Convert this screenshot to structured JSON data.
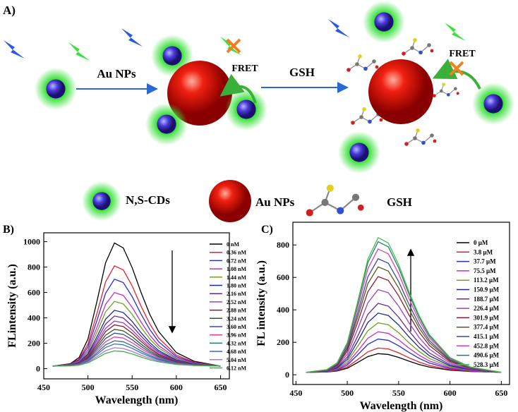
{
  "schematic": {
    "panel": "A)",
    "step1": "Au NPs",
    "step2": "GSH",
    "fret": [
      "FRET",
      "FRET"
    ],
    "legend": [
      "N,S-CDs",
      "Au NPs",
      "GSH"
    ]
  },
  "chart_data": [
    {
      "type": "line",
      "panel": "B)",
      "x_label": "Wavelength (nm)",
      "y_label": "FLintensity (a.u.)",
      "x": [
        460,
        480,
        490,
        500,
        510,
        520,
        530,
        540,
        550,
        560,
        570,
        580,
        600,
        620,
        650
      ],
      "xlim": [
        450,
        660
      ],
      "xticks": [
        450,
        500,
        550,
        600,
        650
      ],
      "ylim": [
        -80,
        1070
      ],
      "yticks": [
        0,
        200,
        400,
        600,
        800,
        1000
      ],
      "series": [
        {
          "name": "0 nM",
          "color": "#000000",
          "values": [
            20,
            39,
            88,
            233,
            524,
            835,
            990,
            951,
            796,
            602,
            427,
            292,
            127,
            59,
            20
          ]
        },
        {
          "name": "0.36 nM",
          "color": "#e8202a",
          "values": [
            20,
            36,
            75,
            194,
            431,
            684,
            810,
            778,
            652,
            494,
            352,
            241,
            107,
            52,
            20
          ]
        },
        {
          "name": "0.72 nM",
          "color": "#2a2ae0",
          "values": [
            20,
            34,
            68,
            171,
            376,
            595,
            705,
            678,
            568,
            431,
            308,
            212,
            95,
            47,
            20
          ]
        },
        {
          "name": "1.08 nM",
          "color": "#c030c8",
          "values": [
            20,
            32,
            61,
            148,
            322,
            507,
            600,
            577,
            484,
            368,
            264,
            182,
            84,
            43,
            20
          ]
        },
        {
          "name": "1.44 nM",
          "color": "#70a020",
          "values": [
            20,
            30,
            56,
            132,
            285,
            448,
            530,
            510,
            428,
            326,
            234,
            163,
            76,
            40,
            20
          ]
        },
        {
          "name": "1.80 nM",
          "color": "#1a2a90",
          "values": [
            20,
            29,
            51,
            117,
            249,
            390,
            460,
            442,
            372,
            284,
            205,
            143,
            68,
            38,
            20
          ]
        },
        {
          "name": "2.16 nM",
          "color": "#6a2a9a",
          "values": [
            20,
            28,
            48,
            107,
            225,
            352,
            415,
            399,
            336,
            257,
            186,
            131,
            63,
            36,
            20
          ]
        },
        {
          "name": "2.52 nM",
          "color": "#a040c0",
          "values": [
            20,
            27,
            45,
            98,
            205,
            318,
            375,
            361,
            304,
            233,
            169,
            119,
            59,
            34,
            20
          ]
        },
        {
          "name": "2.88 nM",
          "color": "#8a1a3a",
          "values": [
            20,
            27,
            43,
            92,
            189,
            293,
            345,
            332,
            280,
            215,
            157,
            111,
            56,
            33,
            20
          ]
        },
        {
          "name": "3.24 nM",
          "color": "#3a5a1a",
          "values": [
            20,
            26,
            40,
            84,
            171,
            264,
            310,
            298,
            252,
            194,
            142,
            101,
            52,
            32,
            20
          ]
        },
        {
          "name": "3.60 nM",
          "color": "#3a4aa0",
          "values": [
            20,
            25,
            38,
            77,
            155,
            238,
            280,
            270,
            228,
            176,
            129,
            93,
            49,
            30,
            20
          ]
        },
        {
          "name": "3.96 nM",
          "color": "#e040a0",
          "values": [
            20,
            25,
            36,
            71,
            140,
            213,
            250,
            241,
            204,
            158,
            117,
            84,
            45,
            29,
            20
          ]
        },
        {
          "name": "4.32 nM",
          "color": "#207a7a",
          "values": [
            20,
            24,
            34,
            64,
            124,
            188,
            220,
            212,
            180,
            140,
            104,
            76,
            42,
            28,
            20
          ]
        },
        {
          "name": "4.68 nM",
          "color": "#3a6ad0",
          "values": [
            20,
            24,
            32,
            59,
            111,
            167,
            195,
            188,
            160,
            125,
            94,
            69,
            39,
            27,
            20
          ]
        },
        {
          "name": "5.04 nM",
          "color": "#b070e0",
          "values": [
            20,
            23,
            30,
            52,
            95,
            142,
            165,
            159,
            136,
            107,
            81,
            61,
            36,
            26,
            20
          ]
        },
        {
          "name": "6.12 nM",
          "color": "#40b040",
          "values": [
            20,
            22,
            28,
            46,
            82,
            121,
            140,
            135,
            116,
            92,
            70,
            54,
            33,
            25,
            20
          ]
        }
      ]
    },
    {
      "type": "line",
      "panel": "C)",
      "x_label": "Wavelength (nm)",
      "y_label": "FL intensity (a.u.)",
      "x": [
        460,
        480,
        490,
        500,
        510,
        520,
        530,
        540,
        550,
        560,
        570,
        580,
        600,
        620,
        650
      ],
      "xlim": [
        447,
        658
      ],
      "xticks": [
        450,
        500,
        550,
        600,
        650
      ],
      "ylim": [
        -60,
        940
      ],
      "yticks": [
        0,
        200,
        400,
        600,
        800
      ],
      "series": [
        {
          "name": "0 μM",
          "color": "#000000",
          "values": [
            15,
            17,
            23,
            40,
            75,
            112,
            130,
            125,
            107,
            84,
            63,
            47,
            28,
            20,
            15
          ]
        },
        {
          "name": "3.8 μM",
          "color": "#e8202a",
          "values": [
            15,
            18,
            26,
            48,
            93,
            141,
            165,
            159,
            135,
            105,
            78,
            57,
            32,
            21,
            15
          ]
        },
        {
          "name": "37.7 μM",
          "color": "#2a2ae0",
          "values": [
            15,
            19,
            29,
            60,
            122,
            187,
            220,
            212,
            179,
            138,
            101,
            72,
            38,
            23,
            15
          ]
        },
        {
          "name": "75.5 μM",
          "color": "#c030c8",
          "values": [
            15,
            20,
            33,
            70,
            145,
            225,
            265,
            255,
            215,
            165,
            120,
            85,
            43,
            25,
            15
          ]
        },
        {
          "name": "113.2 μM",
          "color": "#70a020",
          "values": [
            15,
            21,
            36,
            82,
            174,
            271,
            320,
            308,
            259,
            198,
            143,
            100,
            49,
            27,
            15
          ]
        },
        {
          "name": "150.9 μM",
          "color": "#1a2a90",
          "values": [
            15,
            22,
            41,
            95,
            205,
            322,
            380,
            365,
            307,
            234,
            168,
            117,
            55,
            30,
            15
          ]
        },
        {
          "name": "188.7 μM",
          "color": "#6a2a9a",
          "values": [
            15,
            24,
            45,
            109,
            236,
            372,
            440,
            423,
            355,
            270,
            194,
            134,
            62,
            32,
            15
          ]
        },
        {
          "name": "226.4 μM",
          "color": "#a040c0",
          "values": [
            15,
            25,
            51,
            127,
            280,
            443,
            525,
            505,
            423,
            321,
            229,
            158,
            71,
            35,
            15
          ]
        },
        {
          "name": "301.9 μM",
          "color": "#8a1a3a",
          "values": [
            15,
            27,
            56,
            145,
            322,
            511,
            605,
            581,
            487,
            369,
            263,
            180,
            80,
            39,
            15
          ]
        },
        {
          "name": "377.4 μM",
          "color": "#5a5a1a",
          "values": [
            15,
            28,
            61,
            158,
            353,
            561,
            665,
            639,
            535,
            405,
            288,
            197,
            87,
            41,
            15
          ]
        },
        {
          "name": "415.1 μM",
          "color": "#3a4aa0",
          "values": [
            15,
            29,
            64,
            169,
            379,
            603,
            715,
            687,
            575,
            435,
            309,
            211,
            92,
            43,
            15
          ]
        },
        {
          "name": "452.8 μM",
          "color": "#e040a0",
          "values": [
            15,
            30,
            68,
            182,
            410,
            653,
            775,
            745,
            623,
            471,
            334,
            228,
            99,
            45,
            15
          ]
        },
        {
          "name": "490.6 μM",
          "color": "#207a7a",
          "values": [
            15,
            31,
            71,
            192,
            434,
            691,
            820,
            788,
            659,
            498,
            353,
            240,
            104,
            47,
            15
          ]
        },
        {
          "name": "528.3 μM",
          "color": "#40c040",
          "values": [
            15,
            32,
            73,
            198,
            447,
            712,
            845,
            812,
            679,
            513,
            364,
            247,
            106,
            48,
            15
          ]
        }
      ]
    }
  ]
}
